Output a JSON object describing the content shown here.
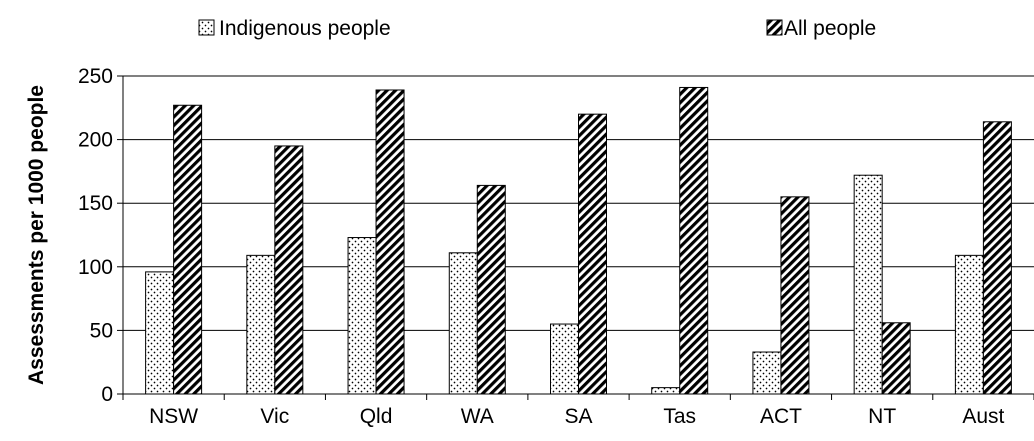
{
  "chart_data": {
    "type": "bar",
    "title": "",
    "xlabel": "",
    "ylabel": "Assessments per 1000 people",
    "ylim": [
      0,
      250
    ],
    "yticks": [
      0,
      50,
      100,
      150,
      200,
      250
    ],
    "grid": true,
    "legend_position": "top",
    "categories": [
      "NSW",
      "Vic",
      "Qld",
      "WA",
      "SA",
      "Tas",
      "ACT",
      "NT",
      "Aust"
    ],
    "series": [
      {
        "name": "Indigenous people",
        "pattern": "dots",
        "values": [
          96,
          109,
          123,
          111,
          55,
          5,
          33,
          172,
          109
        ]
      },
      {
        "name": "All people",
        "pattern": "diagonal-hatch",
        "values": [
          227,
          195,
          239,
          164,
          220,
          241,
          155,
          56,
          214
        ]
      }
    ]
  }
}
